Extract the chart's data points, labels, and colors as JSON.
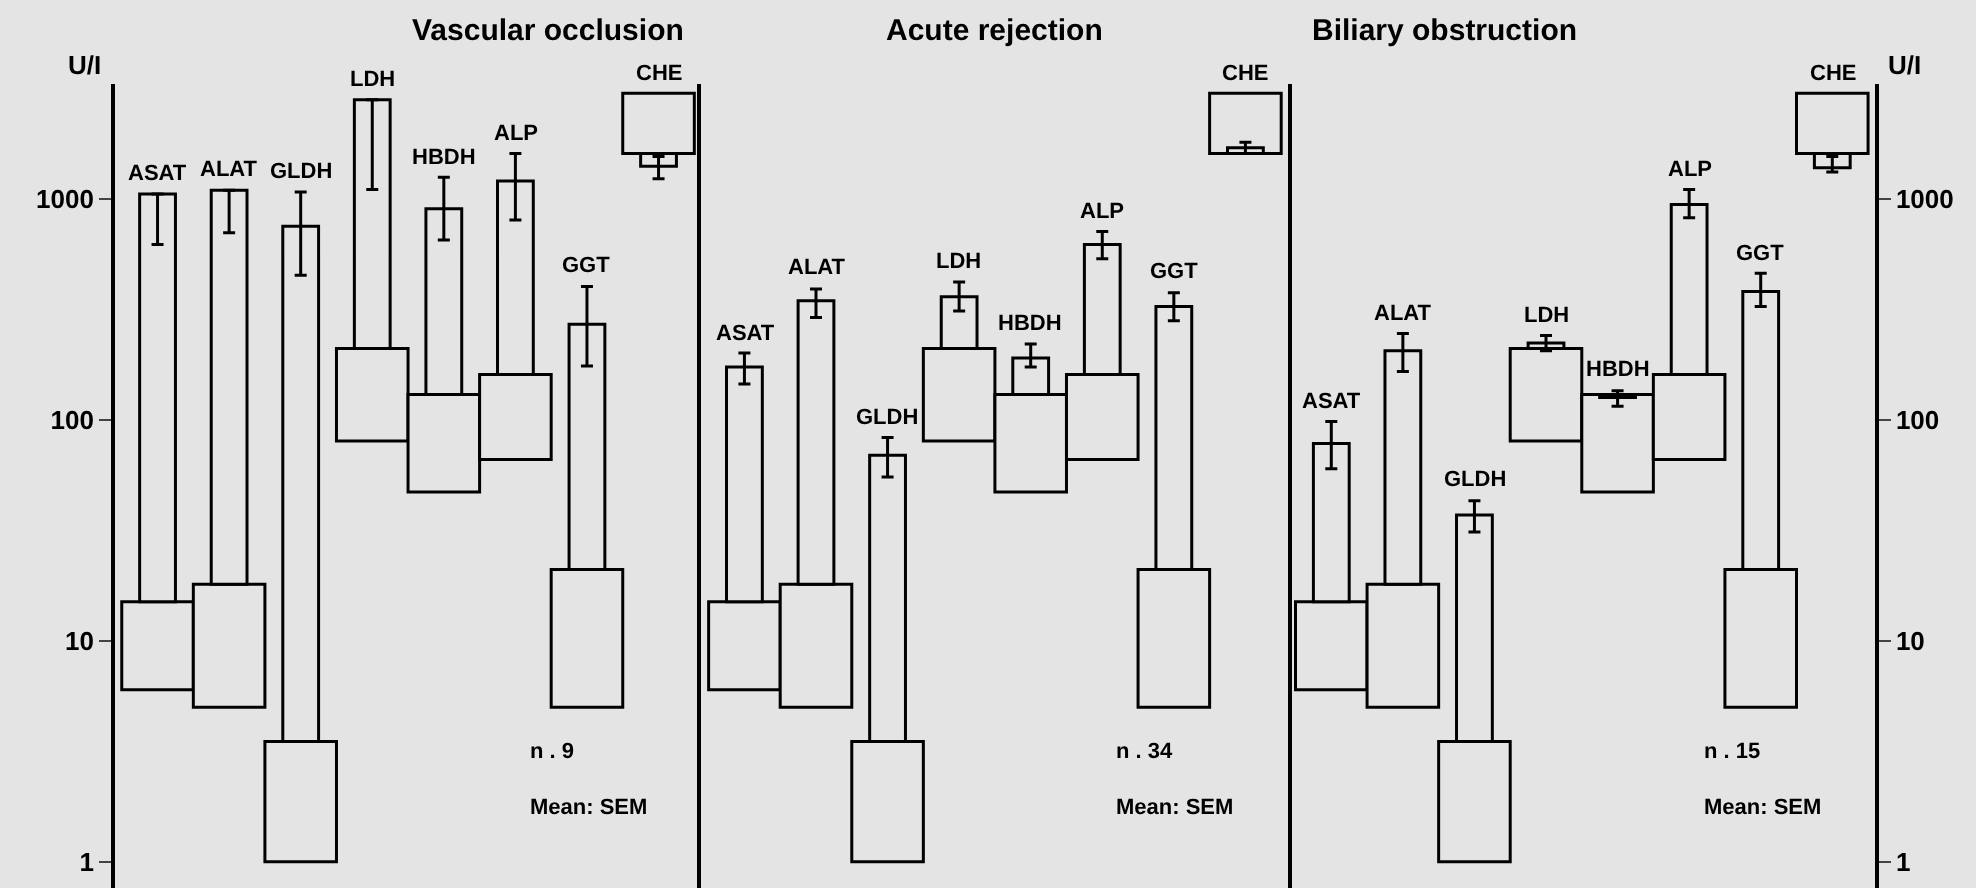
{
  "chart_data": [
    {
      "type": "bar",
      "title": "Vascular occlusion",
      "ylabel": "U/I",
      "categories": [
        "ASAT",
        "ALAT",
        "GLDH",
        "LDH",
        "HBDH",
        "ALP",
        "GGT",
        "CHE"
      ],
      "log": true,
      "ylim": [
        0.76,
        3300
      ],
      "yticks": [
        1,
        10,
        100,
        1000
      ],
      "tick_labels": "y",
      "grid": false,
      "series": [
        {
          "color": "#e4e4e4",
          "base": [
            6,
            5,
            1,
            80,
            47,
            66,
            5,
            1600
          ],
          "values": [
            9,
            13,
            2.5,
            130,
            83,
            94,
            16,
            1400
          ]
        },
        {
          "color": "#e4e4e4",
          "base": [
            15,
            18,
            3.5,
            210,
            130,
            160,
            21,
            1600
          ],
          "values": [
            1035,
            1072,
            746.5,
            2590,
            770,
            1040,
            249,
            -200
          ],
          "errors": [
            [
              620,
              1050
            ],
            [
              700,
              1090
            ],
            [
              450,
              1070
            ],
            [
              1100,
              2800
            ],
            [
              650,
              1250
            ],
            [
              800,
              1600
            ],
            [
              175,
              400
            ],
            [
              1230,
              1550
            ]
          ]
        }
      ],
      "annotations": [
        "n . 9",
        "Mean: SEM"
      ]
    },
    {
      "type": "bar",
      "title": "Acute rejection",
      "categories": [
        "ASAT",
        "ALAT",
        "GLDH",
        "LDH",
        "HBDH",
        "ALP",
        "GGT",
        "CHE"
      ],
      "log": true,
      "ylim": [
        0.76,
        3300
      ],
      "tick_labels": false,
      "grid": false,
      "series": [
        {
          "color": "#e4e4e4",
          "base": [
            6,
            5,
            1,
            80,
            47,
            66,
            5,
            1600
          ],
          "values": [
            9,
            13,
            2.5,
            130,
            83,
            94,
            16,
            1400
          ]
        },
        {
          "color": "#e4e4e4",
          "base": [
            15,
            18,
            3.5,
            210,
            130,
            160,
            21,
            1600
          ],
          "values": [
            158,
            327,
            65.5,
            150,
            60,
            460,
            304,
            100
          ],
          "errors": [
            [
              145,
              200
            ],
            [
              290,
              390
            ],
            [
              55,
              83
            ],
            [
              310,
              420
            ],
            [
              173,
              220
            ],
            [
              535,
              710
            ],
            [
              280,
              375
            ],
            [
              1600,
              1800
            ]
          ]
        }
      ],
      "annotations": [
        "n . 34",
        "Mean: SEM"
      ]
    },
    {
      "type": "bar",
      "title": "Biliary obstruction",
      "ylabel": "U/I",
      "categories": [
        "ASAT",
        "ALAT",
        "GLDH",
        "LDH",
        "HBDH",
        "ALP",
        "GGT",
        "CHE"
      ],
      "log": true,
      "ylim": [
        0.76,
        3300
      ],
      "yticks": [
        1,
        10,
        100,
        1000
      ],
      "tick_labels": "y",
      "grid": false,
      "series": [
        {
          "color": "#e4e4e4",
          "base": [
            6,
            5,
            1,
            80,
            47,
            66,
            5,
            1600
          ],
          "values": [
            9,
            13,
            2.5,
            130,
            83,
            94,
            16,
            1400
          ]
        },
        {
          "color": "#e4e4e4",
          "base": [
            15,
            18,
            3.5,
            210,
            130,
            160,
            21,
            1600
          ],
          "values": [
            63,
            187,
            33.5,
            12,
            -4,
            780,
            359,
            -220
          ],
          "errors": [
            [
              60,
              98
            ],
            [
              165,
              245
            ],
            [
              31,
              43
            ],
            [
              205,
              240
            ],
            [
              115,
              135
            ],
            [
              820,
              1100
            ],
            [
              325,
              460
            ],
            [
              1320,
              1550
            ]
          ]
        }
      ],
      "annotations": [
        "n . 15",
        "Mean: SEM"
      ]
    }
  ]
}
